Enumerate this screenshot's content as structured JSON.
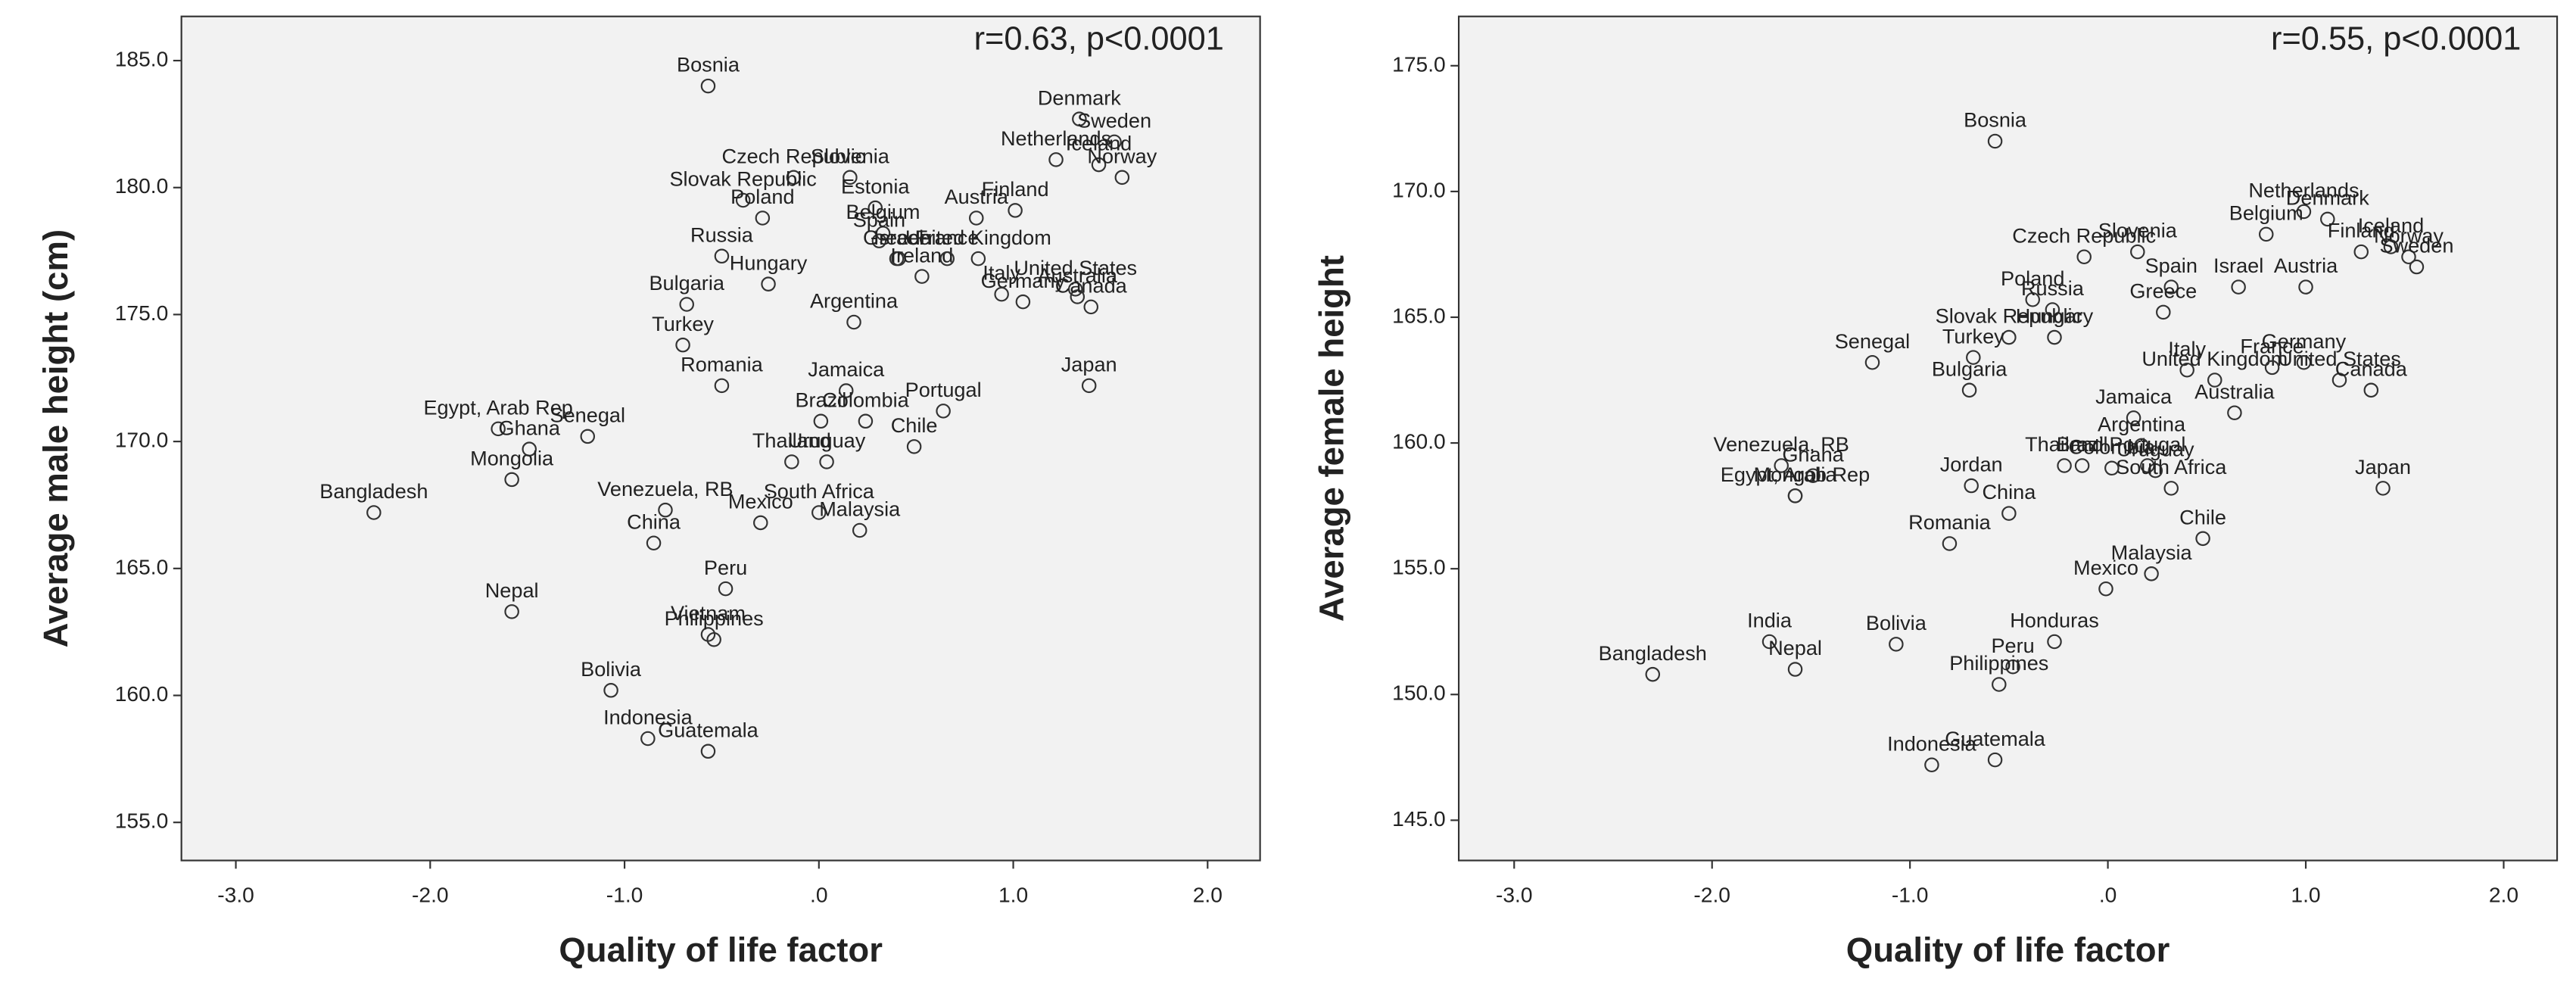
{
  "chart_data": [
    {
      "type": "scatter",
      "annotation": "r=0.63, p<0.0001",
      "x_label": "Quality of life factor",
      "y_label": "Average male height (cm)",
      "xlim": [
        -3.28,
        2.27
      ],
      "ylim": [
        153.5,
        186.74
      ],
      "xticks": [
        {
          "value": -3,
          "label": "-3.0"
        },
        {
          "value": -2,
          "label": "-2.0"
        },
        {
          "value": -1,
          "label": "-1.0"
        },
        {
          "value": 0,
          "label": ".0"
        },
        {
          "value": 1,
          "label": "1.0"
        },
        {
          "value": 2,
          "label": "2.0"
        }
      ],
      "yticks": [
        {
          "value": 155,
          "label": "155.0"
        },
        {
          "value": 160,
          "label": "160.0"
        },
        {
          "value": 165,
          "label": "165.0"
        },
        {
          "value": 170,
          "label": "170.0"
        },
        {
          "value": 175,
          "label": "175.0"
        },
        {
          "value": 180,
          "label": "180.0"
        },
        {
          "value": 185,
          "label": "185.0"
        }
      ],
      "labels": [
        "Bosnia",
        "Denmark",
        "Netherlands",
        "Sweden",
        "Iceland",
        "Norway",
        "Czech Republic",
        "Slovenia",
        "Slovak Republic",
        "Estonia",
        "Finland",
        "Austria",
        "Russia",
        "Poland",
        "Belgium",
        "Spain",
        "Israel",
        "Greece",
        "Ireland",
        "United Kingdom",
        "United States",
        "Australia",
        "Canada",
        "Germany",
        "Italy",
        "France",
        "Argentina",
        "Hungary",
        "Bulgaria",
        "Turkey",
        "Romania",
        "Japan",
        "Jamaica",
        "Portugal",
        "Colombia",
        "Brazil",
        "Chile",
        "Uruguay",
        "Thailand",
        "Senegal",
        "Egypt, Arab Rep",
        "Ghana",
        "Mongolia",
        "Bangladesh",
        "Venezuela, RB",
        "South Africa",
        "China",
        "Mexico",
        "Malaysia",
        "Peru",
        "Nepal",
        "Vietnam",
        "Philippines",
        "Bolivia",
        "Indonesia",
        "Guatemala"
      ],
      "x": [
        -0.57,
        1.34,
        1.22,
        1.52,
        1.44,
        1.56,
        -0.13,
        0.16,
        -0.39,
        0.29,
        1.01,
        0.81,
        -0.5,
        -0.29,
        0.33,
        0.31,
        0.41,
        0.4,
        0.53,
        0.82,
        1.32,
        1.33,
        1.4,
        1.05,
        0.94,
        0.66,
        0.18,
        -0.26,
        -0.68,
        -0.7,
        -0.5,
        1.39,
        0.14,
        0.64,
        0.24,
        0.01,
        0.49,
        0.04,
        -0.14,
        -1.19,
        -1.65,
        -1.49,
        -1.58,
        -2.29,
        -0.79,
        0.0,
        -0.85,
        -0.3,
        0.21,
        -0.48,
        -1.58,
        -0.57,
        -0.54,
        -1.07,
        -0.88,
        -0.57
      ],
      "values": [
        184.0,
        182.7,
        181.1,
        181.8,
        180.9,
        180.4,
        180.4,
        180.4,
        179.5,
        179.2,
        179.1,
        178.8,
        177.3,
        178.8,
        178.2,
        177.9,
        177.2,
        177.2,
        176.5,
        177.2,
        176.0,
        175.7,
        175.3,
        175.5,
        175.8,
        177.2,
        174.7,
        176.2,
        175.4,
        173.8,
        172.2,
        172.2,
        172.0,
        171.2,
        170.8,
        170.8,
        169.8,
        169.2,
        169.2,
        170.2,
        170.5,
        169.7,
        168.5,
        167.2,
        167.3,
        167.2,
        166.0,
        166.8,
        166.5,
        164.2,
        163.3,
        162.4,
        162.2,
        160.2,
        158.3,
        157.8
      ]
    },
    {
      "type": "scatter",
      "annotation": "r=0.55, p<0.0001",
      "x_label": "Quality of life factor",
      "y_label": "Average female height",
      "xlim": [
        -3.28,
        2.27
      ],
      "ylim": [
        143.4,
        176.96
      ],
      "xticks": [
        {
          "value": -3,
          "label": "-3.0"
        },
        {
          "value": -2,
          "label": "-2.0"
        },
        {
          "value": -1,
          "label": "-1.0"
        },
        {
          "value": 0,
          "label": ".0"
        },
        {
          "value": 1,
          "label": "1.0"
        },
        {
          "value": 2,
          "label": "2.0"
        }
      ],
      "yticks": [
        {
          "value": 145,
          "label": "145.0"
        },
        {
          "value": 150,
          "label": "150.0"
        },
        {
          "value": 155,
          "label": "155.0"
        },
        {
          "value": 160,
          "label": "160.0"
        },
        {
          "value": 165,
          "label": "165.0"
        },
        {
          "value": 170,
          "label": "170.0"
        },
        {
          "value": 175,
          "label": "175.0"
        }
      ],
      "labels": [
        "Bosnia",
        "Netherlands",
        "Denmark",
        "Iceland",
        "Finland",
        "Norway",
        "Sweden",
        "Belgium",
        "Slovenia",
        "Czech Republic",
        "Spain",
        "Israel",
        "Austria",
        "Poland",
        "Russia",
        "Greece",
        "Slovak Republic",
        "Senegal",
        "Hungary",
        "Germany",
        "United Kingdom",
        "United States",
        "Canada",
        "France",
        "Bulgaria",
        "Turkey",
        "Jamaica",
        "Australia",
        "Italy",
        "Portugal",
        "Venezuela, RB",
        "Egypt, Arab Rep",
        "Ghana",
        "Mongolia",
        "Thailand",
        "Brazil",
        "Argentina",
        "Uruguay",
        "Jordan",
        "South Africa",
        "China",
        "Chile",
        "Romania",
        "Colombia",
        "Mexico",
        "Malaysia",
        "Japan",
        "India",
        "Bolivia",
        "Nepal",
        "Bangladesh",
        "Honduras",
        "Peru",
        "Philippines",
        "Indonesia",
        "Guatemala"
      ],
      "x": [
        -0.57,
        0.99,
        1.11,
        1.43,
        1.28,
        1.52,
        1.56,
        0.8,
        0.15,
        -0.12,
        0.32,
        0.66,
        1.0,
        -0.38,
        -0.28,
        0.28,
        -0.5,
        -1.19,
        -0.27,
        0.99,
        0.54,
        1.17,
        1.33,
        0.83,
        -0.7,
        -0.68,
        0.13,
        0.64,
        0.4,
        0.2,
        -1.65,
        -1.58,
        -1.49,
        -1.58,
        -0.22,
        -0.13,
        0.17,
        0.24,
        -0.69,
        0.32,
        -0.5,
        0.48,
        -0.8,
        0.02,
        -0.01,
        0.22,
        1.39,
        -1.71,
        -1.07,
        -1.58,
        -2.3,
        -0.27,
        -0.48,
        -0.55,
        -0.89,
        -0.57
      ],
      "values": [
        172.0,
        169.2,
        168.9,
        167.8,
        167.6,
        167.4,
        167.0,
        168.3,
        167.6,
        167.4,
        166.2,
        166.2,
        166.2,
        165.7,
        165.3,
        165.2,
        164.2,
        163.2,
        164.2,
        163.2,
        162.5,
        162.5,
        162.1,
        163.0,
        162.1,
        163.4,
        161.0,
        161.2,
        162.9,
        159.1,
        159.1,
        157.9,
        158.7,
        157.9,
        159.1,
        159.1,
        159.9,
        158.9,
        158.3,
        158.2,
        157.2,
        156.2,
        156.0,
        159.0,
        154.2,
        154.8,
        158.2,
        152.1,
        152.0,
        151.0,
        150.8,
        152.1,
        151.1,
        150.4,
        147.2,
        147.4
      ]
    }
  ]
}
